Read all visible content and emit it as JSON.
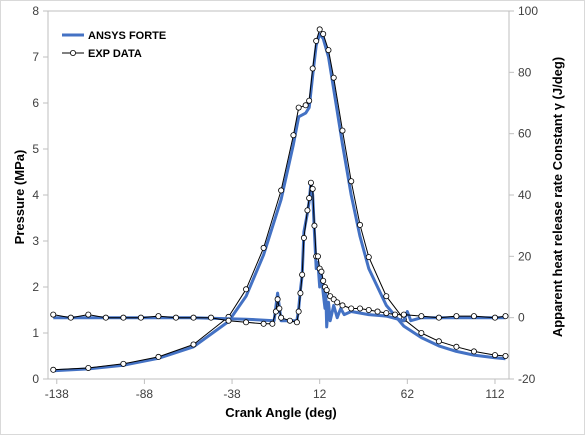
{
  "chart_data": {
    "type": "line",
    "xlabel": "Crank Angle (deg)",
    "ylabel_left": "Pressure (MPa)",
    "ylabel_right": "Apparent heat release rate Constant  γ  (J/deg)",
    "xlim": [
      -143,
      120
    ],
    "ylim_left": [
      0,
      8
    ],
    "ylim_right": [
      -20,
      100
    ],
    "x_ticks": [
      -138,
      -88,
      -38,
      12,
      62,
      112
    ],
    "y_left_ticks": [
      0,
      1,
      2,
      3,
      4,
      5,
      6,
      7,
      8
    ],
    "y_right_ticks": [
      -20,
      0,
      20,
      40,
      60,
      80,
      100
    ],
    "grid": false,
    "legend": {
      "position": "top-left",
      "items": [
        {
          "label": "ANSYS FORTE",
          "color": "#4472c4",
          "style": "thick-line"
        },
        {
          "label": "EXP DATA",
          "color": "#000000",
          "style": "line-circle-marker"
        }
      ]
    },
    "series": [
      {
        "name": "ANSYS FORTE",
        "axis": "left",
        "color": "#4472c4",
        "points": [
          [
            -140,
            0.18
          ],
          [
            -120,
            0.22
          ],
          [
            -100,
            0.3
          ],
          [
            -80,
            0.45
          ],
          [
            -60,
            0.7
          ],
          [
            -40,
            1.25
          ],
          [
            -30,
            1.8
          ],
          [
            -20,
            2.7
          ],
          [
            -10,
            3.9
          ],
          [
            -3,
            5.1
          ],
          [
            0,
            5.7
          ],
          [
            4,
            5.78
          ],
          [
            6,
            5.9
          ],
          [
            8,
            6.6
          ],
          [
            10,
            7.25
          ],
          [
            12,
            7.5
          ],
          [
            14,
            7.4
          ],
          [
            17,
            7.0
          ],
          [
            20,
            6.3
          ],
          [
            25,
            5.1
          ],
          [
            30,
            4.0
          ],
          [
            35,
            3.1
          ],
          [
            40,
            2.4
          ],
          [
            50,
            1.6
          ],
          [
            60,
            1.15
          ],
          [
            70,
            0.9
          ],
          [
            80,
            0.72
          ],
          [
            90,
            0.6
          ],
          [
            100,
            0.52
          ],
          [
            112,
            0.46
          ],
          [
            118,
            0.44
          ]
        ]
      },
      {
        "name": "EXP DATA",
        "axis": "left",
        "color": "#000000",
        "points": [
          [
            -140,
            0.2
          ],
          [
            -120,
            0.24
          ],
          [
            -100,
            0.33
          ],
          [
            -80,
            0.48
          ],
          [
            -60,
            0.75
          ],
          [
            -40,
            1.35
          ],
          [
            -30,
            1.95
          ],
          [
            -20,
            2.85
          ],
          [
            -10,
            4.1
          ],
          [
            -3,
            5.3
          ],
          [
            0,
            5.9
          ],
          [
            4,
            5.95
          ],
          [
            6,
            6.05
          ],
          [
            8,
            6.75
          ],
          [
            10,
            7.35
          ],
          [
            12,
            7.6
          ],
          [
            14,
            7.5
          ],
          [
            17,
            7.15
          ],
          [
            20,
            6.55
          ],
          [
            25,
            5.4
          ],
          [
            30,
            4.3
          ],
          [
            35,
            3.35
          ],
          [
            40,
            2.65
          ],
          [
            50,
            1.8
          ],
          [
            60,
            1.3
          ],
          [
            70,
            1.0
          ],
          [
            80,
            0.82
          ],
          [
            90,
            0.7
          ],
          [
            100,
            0.6
          ],
          [
            112,
            0.52
          ],
          [
            118,
            0.5
          ]
        ]
      },
      {
        "name": "ANSYS FORTE",
        "axis": "right",
        "color": "#4472c4",
        "points": [
          [
            -140,
            0
          ],
          [
            -60,
            0
          ],
          [
            -30,
            -0.5
          ],
          [
            -14,
            -1
          ],
          [
            -12,
            8
          ],
          [
            -10,
            -1
          ],
          [
            -5,
            -1
          ],
          [
            -1,
            -1
          ],
          [
            0,
            3
          ],
          [
            1,
            9
          ],
          [
            2,
            14
          ],
          [
            3,
            28
          ],
          [
            5,
            34
          ],
          [
            6,
            38
          ],
          [
            7,
            44
          ],
          [
            8,
            40
          ],
          [
            9,
            28
          ],
          [
            10,
            16
          ],
          [
            11,
            18
          ],
          [
            12,
            10
          ],
          [
            13,
            14
          ],
          [
            14,
            8
          ],
          [
            15,
            3
          ],
          [
            15.5,
            8
          ],
          [
            16,
            -3
          ],
          [
            17,
            5
          ],
          [
            18,
            -1
          ],
          [
            20,
            4
          ],
          [
            22,
            0
          ],
          [
            24,
            3
          ],
          [
            26,
            1
          ],
          [
            30,
            2
          ],
          [
            40,
            1
          ],
          [
            50,
            0.5
          ],
          [
            60,
            -1
          ],
          [
            62,
            2
          ],
          [
            64,
            -1
          ],
          [
            70,
            0
          ],
          [
            118,
            0
          ]
        ]
      },
      {
        "name": "EXP DATA",
        "axis": "right",
        "color": "#000000",
        "points": [
          [
            -140,
            1
          ],
          [
            -130,
            0
          ],
          [
            -120,
            1
          ],
          [
            -110,
            0
          ],
          [
            -100,
            0
          ],
          [
            -90,
            0
          ],
          [
            -80,
            0.5
          ],
          [
            -70,
            0
          ],
          [
            -60,
            0
          ],
          [
            -50,
            0
          ],
          [
            -40,
            -1
          ],
          [
            -30,
            -1.5
          ],
          [
            -20,
            -2
          ],
          [
            -15,
            -2
          ],
          [
            -13,
            2
          ],
          [
            -12,
            6
          ],
          [
            -11,
            3
          ],
          [
            -10,
            0
          ],
          [
            -5,
            -1
          ],
          [
            -1,
            -1.5
          ],
          [
            0,
            2
          ],
          [
            1,
            8
          ],
          [
            2,
            14
          ],
          [
            3,
            26
          ],
          [
            5,
            35
          ],
          [
            6,
            39
          ],
          [
            7,
            44
          ],
          [
            8,
            42
          ],
          [
            9,
            30
          ],
          [
            10,
            20
          ],
          [
            11,
            20
          ],
          [
            12,
            16
          ],
          [
            13,
            15
          ],
          [
            14,
            12
          ],
          [
            15,
            10
          ],
          [
            16,
            9
          ],
          [
            18,
            7
          ],
          [
            20,
            6
          ],
          [
            22,
            5
          ],
          [
            25,
            4
          ],
          [
            30,
            3
          ],
          [
            35,
            3
          ],
          [
            40,
            2.5
          ],
          [
            45,
            2
          ],
          [
            50,
            1.5
          ],
          [
            55,
            1
          ],
          [
            60,
            1
          ],
          [
            70,
            0.5
          ],
          [
            80,
            0
          ],
          [
            90,
            0.5
          ],
          [
            100,
            0.5
          ],
          [
            112,
            0
          ],
          [
            118,
            0.5
          ]
        ]
      }
    ]
  }
}
